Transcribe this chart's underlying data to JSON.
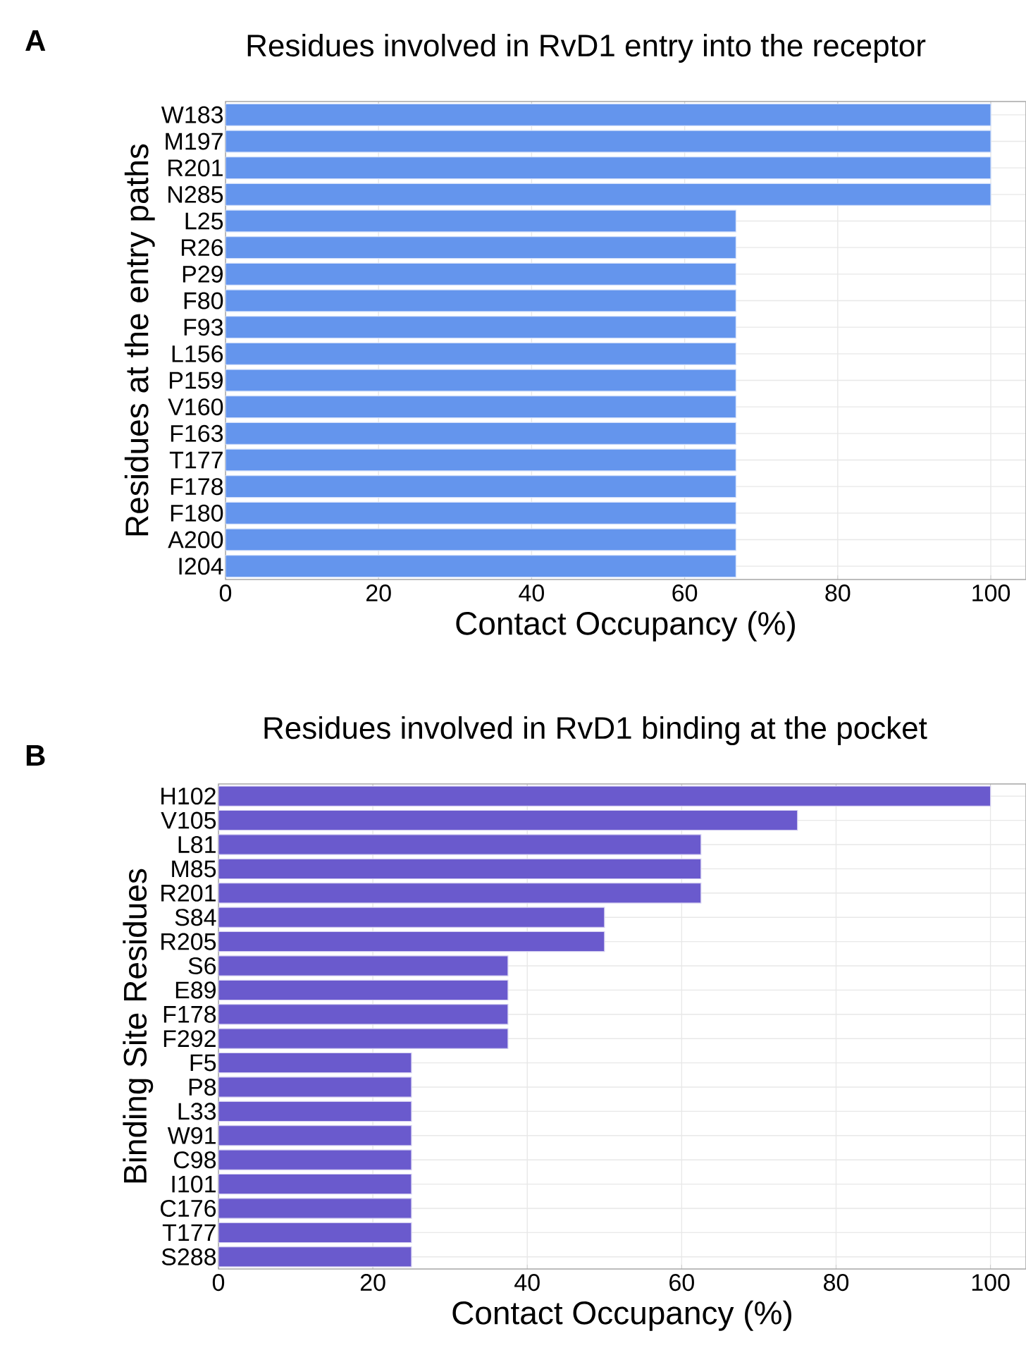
{
  "chart_data": [
    {
      "type": "bar",
      "orientation": "horizontal",
      "title": "Residues involved in RvD1 entry into the receptor",
      "xlabel": "Contact Occupancy (%)",
      "ylabel": "Residues at the entry paths",
      "annotations": [
        "A"
      ],
      "categories": [
        "W183",
        "M197",
        "R201",
        "N285",
        "L25",
        "R26",
        "P29",
        "F80",
        "F93",
        "L156",
        "P159",
        "V160",
        "F163",
        "T177",
        "F178",
        "F180",
        "A200",
        "I204"
      ],
      "values": [
        100,
        100,
        100,
        100,
        66.7,
        66.7,
        66.7,
        66.7,
        66.7,
        66.7,
        66.7,
        66.7,
        66.7,
        66.7,
        66.7,
        66.7,
        66.7,
        66.7
      ],
      "color": "#6495ed",
      "xlim": [
        0,
        104.6
      ],
      "xticks": [
        0,
        20,
        40,
        60,
        80,
        100
      ],
      "grid": true
    },
    {
      "type": "bar",
      "orientation": "horizontal",
      "title": "Residues involved in RvD1 binding at the pocket",
      "xlabel": "Contact Occupancy (%)",
      "ylabel": "Binding Site Residues",
      "annotations": [
        "B"
      ],
      "categories": [
        "H102",
        "V105",
        "L81",
        "M85",
        "R201",
        "S84",
        "R205",
        "S6",
        "E89",
        "F178",
        "F292",
        "F5",
        "P8",
        "L33",
        "W91",
        "C98",
        "I101",
        "C176",
        "T177",
        "S288"
      ],
      "values": [
        100,
        75,
        62.5,
        62.5,
        62.5,
        50,
        50,
        37.5,
        37.5,
        37.5,
        37.5,
        25,
        25,
        25,
        25,
        25,
        25,
        25,
        25,
        25
      ],
      "color": "#6a5acd",
      "xlim": [
        0,
        104.6
      ],
      "xticks": [
        0,
        20,
        40,
        60,
        80,
        100
      ],
      "grid": true
    }
  ]
}
